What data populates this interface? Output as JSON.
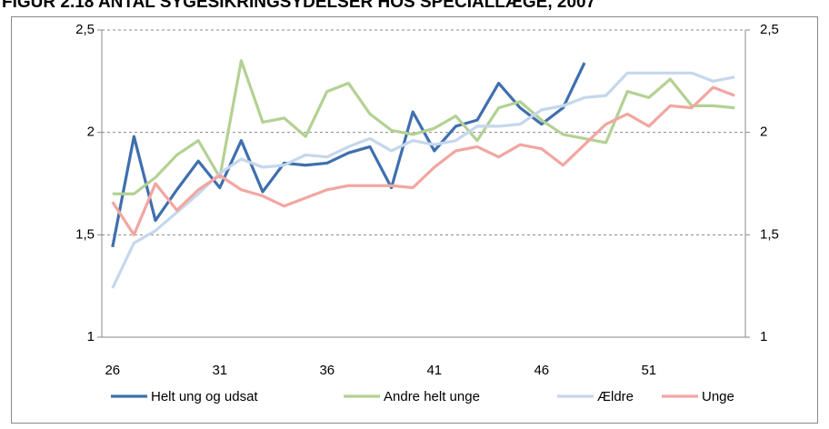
{
  "chart_data": {
    "type": "line",
    "title": "FIGUR 2.18 ANTAL SYGESIKRINGSYDELSER HOS SPECIALLÆGE, 2007",
    "categories": [
      26,
      null,
      null,
      null,
      null,
      31,
      null,
      null,
      null,
      null,
      36,
      null,
      null,
      null,
      null,
      41,
      null,
      null,
      null,
      null,
      46,
      null,
      null,
      null,
      null,
      51,
      null,
      null,
      null,
      null
    ],
    "series": [
      {
        "name": "Helt ung og udsat",
        "color": "#3f6fae",
        "values": [
          1.44,
          1.98,
          1.57,
          1.72,
          1.86,
          1.73,
          1.96,
          1.71,
          1.85,
          1.84,
          1.85,
          1.9,
          1.93,
          1.73,
          2.1,
          1.91,
          2.03,
          2.06,
          2.24,
          2.12,
          2.04,
          2.12,
          2.34,
          null,
          null,
          null,
          null,
          null,
          null,
          null
        ]
      },
      {
        "name": "Andre helt unge",
        "color": "#b3d193",
        "values": [
          1.7,
          1.7,
          1.78,
          1.89,
          1.96,
          1.78,
          2.35,
          2.05,
          2.07,
          1.98,
          2.2,
          2.24,
          2.09,
          2.01,
          1.99,
          2.02,
          2.08,
          1.96,
          2.12,
          2.15,
          2.06,
          1.99,
          1.97,
          1.95,
          2.2,
          2.17,
          2.26,
          2.13,
          2.13,
          2.12
        ]
      },
      {
        "name": "Ældre",
        "color": "#c5d7ec",
        "values": [
          1.24,
          1.46,
          1.52,
          1.61,
          1.7,
          1.8,
          1.87,
          1.83,
          1.84,
          1.89,
          1.88,
          1.93,
          1.97,
          1.91,
          1.96,
          1.94,
          1.96,
          2.03,
          2.03,
          2.04,
          2.11,
          2.13,
          2.17,
          2.18,
          2.29,
          2.29,
          2.29,
          2.29,
          2.25,
          2.27
        ]
      },
      {
        "name": "Unge",
        "color": "#f2a6a1",
        "values": [
          1.66,
          1.5,
          1.75,
          1.62,
          1.72,
          1.79,
          1.72,
          1.69,
          1.64,
          1.68,
          1.72,
          1.74,
          1.74,
          1.74,
          1.73,
          1.83,
          1.91,
          1.93,
          1.88,
          1.94,
          1.92,
          1.84,
          1.94,
          2.04,
          2.09,
          2.03,
          2.13,
          2.12,
          2.22,
          2.18
        ]
      }
    ],
    "ylim": [
      1,
      2.5
    ],
    "yticks": [
      1,
      {
        "value": 1.5,
        "label": "1,5"
      },
      2,
      {
        "value": 2.5,
        "label": "2,5"
      }
    ],
    "grid": true
  }
}
